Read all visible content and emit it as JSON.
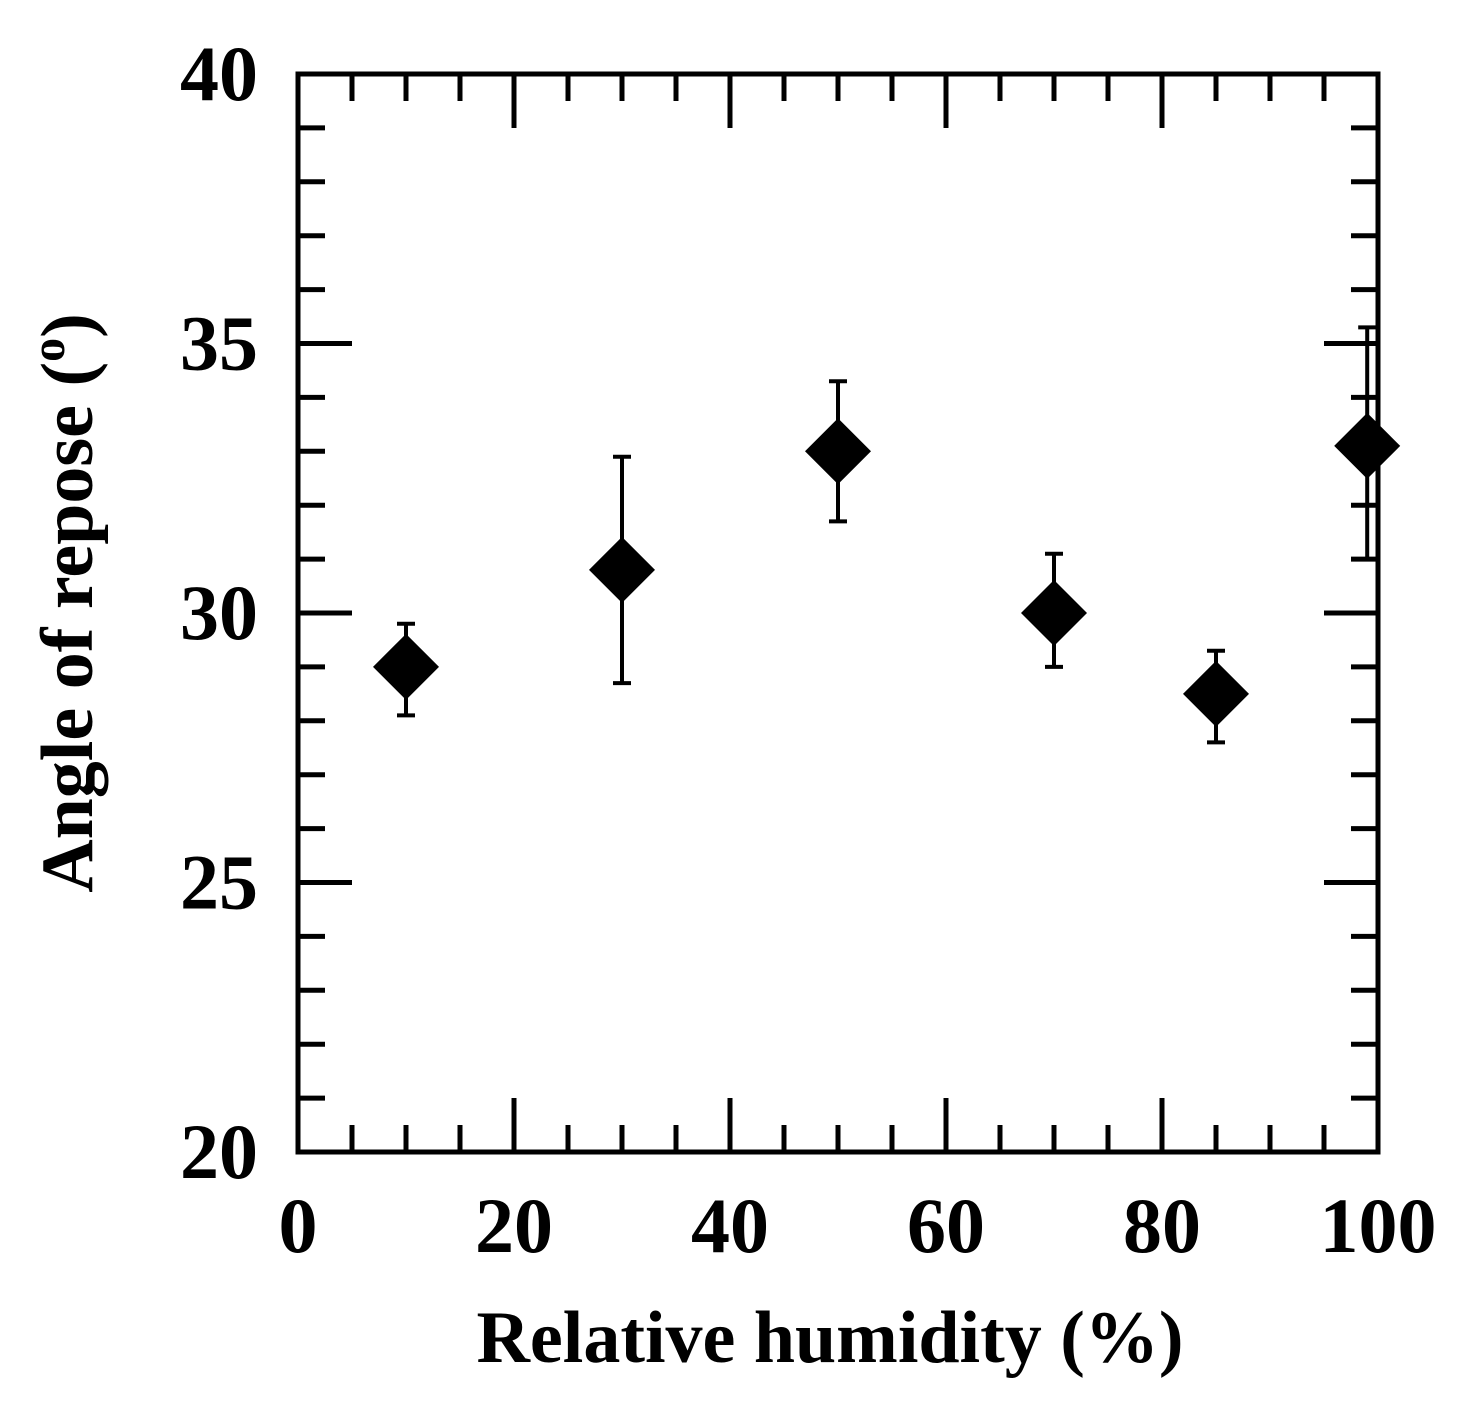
{
  "chart_data": {
    "type": "scatter",
    "xlabel": "Relative humidity  (%)",
    "ylabel_main": "Angle of repose  (",
    "ylabel_sup": "o",
    "ylabel_end": ")",
    "xlim": [
      0,
      100
    ],
    "ylim": [
      20,
      40
    ],
    "xticks": [
      "0",
      "20",
      "40",
      "60",
      "80",
      "100"
    ],
    "yticks": [
      "20",
      "25",
      "30",
      "35",
      "40"
    ],
    "grid": false,
    "marker": "diamond",
    "color": "#000000",
    "series": [
      {
        "points": [
          {
            "x": 10,
            "y": 29.0,
            "err_low": 28.1,
            "err_high": 29.8
          },
          {
            "x": 30,
            "y": 30.8,
            "err_low": 28.7,
            "err_high": 32.9
          },
          {
            "x": 50,
            "y": 33.0,
            "err_low": 31.7,
            "err_high": 34.3
          },
          {
            "x": 70,
            "y": 30.0,
            "err_low": 29.0,
            "err_high": 31.1
          },
          {
            "x": 85,
            "y": 28.5,
            "err_low": 27.6,
            "err_high": 29.3
          },
          {
            "x": 99,
            "y": 33.1,
            "err_low": 31.0,
            "err_high": 35.3
          }
        ]
      }
    ]
  }
}
